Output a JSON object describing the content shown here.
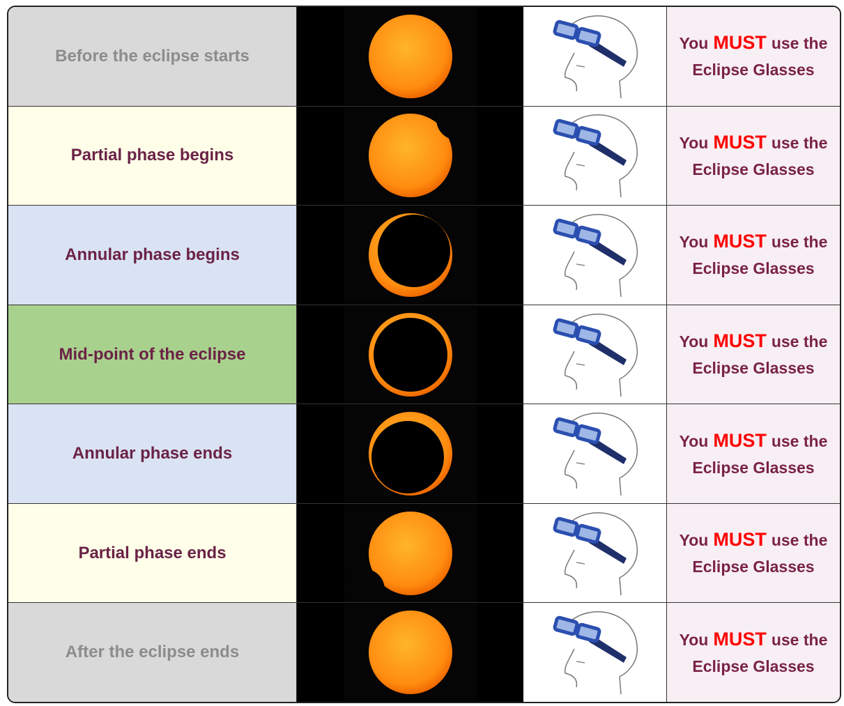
{
  "rows": [
    {
      "phase": "Before the eclipse starts",
      "note": [
        "You",
        "MUST",
        "use the",
        "Eclipse Glasses"
      ]
    },
    {
      "phase": "Partial phase begins",
      "note": [
        "You",
        "MUST",
        "use the",
        "Eclipse Glasses"
      ]
    },
    {
      "phase": "Annular phase begins",
      "note": [
        "You",
        "MUST",
        "use the",
        "Eclipse Glasses"
      ]
    },
    {
      "phase": "Mid-point of the eclipse",
      "note": [
        "You",
        "MUST",
        "use the",
        "Eclipse Glasses"
      ]
    },
    {
      "phase": "Annular phase ends",
      "note": [
        "You",
        "MUST",
        "use the",
        "Eclipse Glasses"
      ]
    },
    {
      "phase": "Partial phase ends",
      "note": [
        "You",
        "MUST",
        "use the",
        "Eclipse Glasses"
      ]
    },
    {
      "phase": "After the eclipse ends",
      "note": [
        "You",
        "MUST",
        "use the",
        "Eclipse Glasses"
      ]
    }
  ]
}
